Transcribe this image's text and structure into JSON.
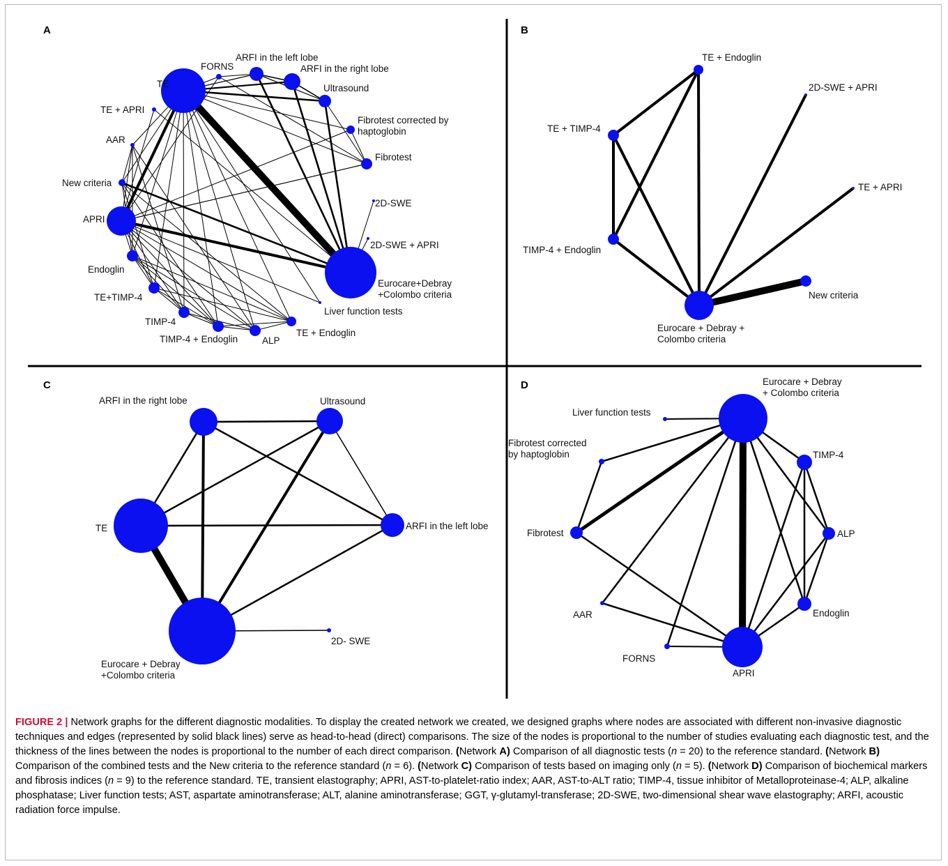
{
  "panels": [
    {
      "letter": "A",
      "nodes": [
        {
          "id": "TE",
          "label": "TE"
        },
        {
          "id": "FORNS",
          "label": "FORNS"
        },
        {
          "id": "ARFI-L",
          "label": "ARFI in the left lobe"
        },
        {
          "id": "ARFI-R",
          "label": "ARFI in the right lobe"
        },
        {
          "id": "US",
          "label": "Ultrasound"
        },
        {
          "id": "FTH",
          "label": "Fibrotest corrected by|haptoglobin"
        },
        {
          "id": "FT",
          "label": "Fibrotest"
        },
        {
          "id": "SWE",
          "label": "2D-SWE"
        },
        {
          "id": "SWEAPRI",
          "label": "2D-SWE + APRI"
        },
        {
          "id": "EDC",
          "label": "Eurocare+Debray|+Colombo criteria"
        },
        {
          "id": "LFT",
          "label": "Liver function tests"
        },
        {
          "id": "TEEND",
          "label": "TE + Endoglin"
        },
        {
          "id": "ALP",
          "label": "ALP"
        },
        {
          "id": "TIMPEND",
          "label": "TIMP-4 + Endoglin"
        },
        {
          "id": "TIMP",
          "label": "TIMP-4"
        },
        {
          "id": "TETIMP",
          "label": "TE+TIMP-4"
        },
        {
          "id": "END",
          "label": "Endoglin"
        },
        {
          "id": "APRI",
          "label": "APRI"
        },
        {
          "id": "NEW",
          "label": "New criteria"
        },
        {
          "id": "AAR",
          "label": "AAR"
        },
        {
          "id": "TEAPRI",
          "label": "TE + APRI"
        }
      ],
      "edges": [
        {
          "a": "TE",
          "b": "EDC",
          "w": 10
        },
        {
          "a": "TE",
          "b": "APRI",
          "w": 4
        },
        {
          "a": "APRI",
          "b": "EDC",
          "w": 4
        },
        {
          "a": "ARFI-R",
          "b": "EDC",
          "w": 2.6
        },
        {
          "a": "ARFI-L",
          "b": "EDC",
          "w": 2.6
        },
        {
          "a": "US",
          "b": "EDC",
          "w": 2.6
        },
        {
          "a": "TE",
          "b": "US",
          "w": 2.6
        },
        {
          "a": "TE",
          "b": "ARFI-R",
          "w": 2.2
        },
        {
          "a": "NEW",
          "b": "EDC",
          "w": 2.6
        },
        {
          "a": "TE",
          "b": "FORNS",
          "w": 1
        },
        {
          "a": "TE",
          "b": "ARFI-L",
          "w": 1.2
        },
        {
          "a": "TE",
          "b": "FTH",
          "w": 1
        },
        {
          "a": "TE",
          "b": "FT",
          "w": 1
        },
        {
          "a": "TE",
          "b": "TIMP",
          "w": 1
        },
        {
          "a": "TE",
          "b": "ALP",
          "w": 1
        },
        {
          "a": "TE",
          "b": "LFT",
          "w": 1
        },
        {
          "a": "TE",
          "b": "END",
          "w": 1
        },
        {
          "a": "TE",
          "b": "AAR",
          "w": 1
        },
        {
          "a": "TE",
          "b": "TETIMP",
          "w": 1
        },
        {
          "a": "TE",
          "b": "TIMPEND",
          "w": 1
        },
        {
          "a": "TE",
          "b": "TEEND",
          "w": 1
        },
        {
          "a": "TE",
          "b": "NEW",
          "w": 1
        },
        {
          "a": "ARFI-L",
          "b": "ARFI-R",
          "w": 1.6
        },
        {
          "a": "ARFI-L",
          "b": "US",
          "w": 1.2
        },
        {
          "a": "ARFI-R",
          "b": "US",
          "w": 1.6
        },
        {
          "a": "FORNS",
          "b": "APRI",
          "w": 1
        },
        {
          "a": "FORNS",
          "b": "FT",
          "w": 1
        },
        {
          "a": "FT",
          "b": "APRI",
          "w": 1
        },
        {
          "a": "FT",
          "b": "FTH",
          "w": 1
        },
        {
          "a": "FTH",
          "b": "APRI",
          "w": 1
        },
        {
          "a": "SWE",
          "b": "EDC",
          "w": 1
        },
        {
          "a": "SWEAPRI",
          "b": "EDC",
          "w": 1
        },
        {
          "a": "APRI",
          "b": "TIMP",
          "w": 1
        },
        {
          "a": "APRI",
          "b": "ALP",
          "w": 1
        },
        {
          "a": "APRI",
          "b": "END",
          "w": 1
        },
        {
          "a": "APRI",
          "b": "TETIMP",
          "w": 1
        },
        {
          "a": "APRI",
          "b": "TIMPEND",
          "w": 1
        },
        {
          "a": "APRI",
          "b": "TEEND",
          "w": 1
        },
        {
          "a": "APRI",
          "b": "AAR",
          "w": 1
        },
        {
          "a": "APRI",
          "b": "LFT",
          "w": 1
        },
        {
          "a": "APRI",
          "b": "FT",
          "w": 1
        },
        {
          "a": "AAR",
          "b": "TIMP",
          "w": 1
        },
        {
          "a": "AAR",
          "b": "ALP",
          "w": 1
        },
        {
          "a": "AAR",
          "b": "END",
          "w": 1
        },
        {
          "a": "AAR",
          "b": "NEW",
          "w": 1
        },
        {
          "a": "NEW",
          "b": "TETIMP",
          "w": 1
        },
        {
          "a": "NEW",
          "b": "TIMPEND",
          "w": 1
        },
        {
          "a": "NEW",
          "b": "TEEND",
          "w": 1
        },
        {
          "a": "NEW",
          "b": "END",
          "w": 1
        },
        {
          "a": "END",
          "b": "TIMP",
          "w": 1
        },
        {
          "a": "END",
          "b": "ALP",
          "w": 1
        },
        {
          "a": "END",
          "b": "TETIMP",
          "w": 1
        },
        {
          "a": "END",
          "b": "TIMPEND",
          "w": 1
        },
        {
          "a": "END",
          "b": "TEEND",
          "w": 1
        },
        {
          "a": "TETIMP",
          "b": "TIMPEND",
          "w": 1
        },
        {
          "a": "TETIMP",
          "b": "TEEND",
          "w": 1
        },
        {
          "a": "TETIMP",
          "b": "TIMP",
          "w": 1
        },
        {
          "a": "TIMP",
          "b": "TIMPEND",
          "w": 1
        },
        {
          "a": "TIMP",
          "b": "ALP",
          "w": 1
        },
        {
          "a": "TIMPEND",
          "b": "TEEND",
          "w": 1
        },
        {
          "a": "TIMPEND",
          "b": "ALP",
          "w": 1
        },
        {
          "a": "ALP",
          "b": "TEEND",
          "w": 1
        },
        {
          "a": "TEAPRI",
          "b": "APRI",
          "w": 1
        },
        {
          "a": "TEAPRI",
          "b": "EDC",
          "w": 1
        },
        {
          "a": "FT",
          "b": "US",
          "w": 1
        },
        {
          "a": "FORNS",
          "b": "ARFI-L",
          "w": 1
        }
      ]
    },
    {
      "letter": "B",
      "nodes": [
        {
          "id": "TEEND",
          "label": "TE + Endoglin"
        },
        {
          "id": "SWEAPRI",
          "label": "2D-SWE + APRI"
        },
        {
          "id": "TETIMP",
          "label": "TE + TIMP-4"
        },
        {
          "id": "TEAPRI",
          "label": "TE + APRI"
        },
        {
          "id": "TIMPEND",
          "label": "TIMP-4 + Endoglin"
        },
        {
          "id": "NEW",
          "label": "New criteria"
        },
        {
          "id": "EDC",
          "label": "Eurocare + Debray +|Colombo criteria"
        }
      ],
      "edges": [
        {
          "a": "NEW",
          "b": "EDC",
          "w": 10
        },
        {
          "a": "TEEND",
          "b": "EDC",
          "w": 4
        },
        {
          "a": "SWEAPRI",
          "b": "EDC",
          "w": 4
        },
        {
          "a": "TEAPRI",
          "b": "EDC",
          "w": 4
        },
        {
          "a": "TETIMP",
          "b": "EDC",
          "w": 4
        },
        {
          "a": "TIMPEND",
          "b": "EDC",
          "w": 4
        },
        {
          "a": "TETIMP",
          "b": "TEEND",
          "w": 4
        },
        {
          "a": "TETIMP",
          "b": "TIMPEND",
          "w": 4
        },
        {
          "a": "TIMPEND",
          "b": "TEEND",
          "w": 4
        }
      ]
    },
    {
      "letter": "C",
      "nodes": [
        {
          "id": "ARFI-R",
          "label": "ARFI in the right lobe"
        },
        {
          "id": "US",
          "label": "Ultrasound"
        },
        {
          "id": "TE",
          "label": "TE"
        },
        {
          "id": "ARFI-L",
          "label": "ARFI in the left lobe"
        },
        {
          "id": "EDC",
          "label": "Eurocare + Debray|+Colombo criteria"
        },
        {
          "id": "SWE",
          "label": "2D- SWE"
        }
      ],
      "edges": [
        {
          "a": "TE",
          "b": "EDC",
          "w": 10
        },
        {
          "a": "US",
          "b": "EDC",
          "w": 4
        },
        {
          "a": "ARFI-R",
          "b": "EDC",
          "w": 4
        },
        {
          "a": "TE",
          "b": "ARFI-R",
          "w": 2.5
        },
        {
          "a": "TE",
          "b": "US",
          "w": 2.5
        },
        {
          "a": "TE",
          "b": "ARFI-L",
          "w": 2.5
        },
        {
          "a": "ARFI-R",
          "b": "US",
          "w": 2.5
        },
        {
          "a": "ARFI-R",
          "b": "ARFI-L",
          "w": 2.5
        },
        {
          "a": "US",
          "b": "ARFI-L",
          "w": 1.5
        },
        {
          "a": "ARFI-L",
          "b": "EDC",
          "w": 2.5
        },
        {
          "a": "SWE",
          "b": "EDC",
          "w": 1.5
        }
      ]
    },
    {
      "letter": "D",
      "nodes": [
        {
          "id": "EDC",
          "label": "Eurocare + Debray|+ Colombo criteria"
        },
        {
          "id": "LFT",
          "label": "Liver function tests"
        },
        {
          "id": "FTH",
          "label": "Fibrotest corrected|by haptoglobin"
        },
        {
          "id": "TIMP",
          "label": "TIMP-4"
        },
        {
          "id": "FT",
          "label": "Fibrotest"
        },
        {
          "id": "ALP",
          "label": "ALP"
        },
        {
          "id": "AAR",
          "label": "AAR"
        },
        {
          "id": "END",
          "label": "Endoglin"
        },
        {
          "id": "FORNS",
          "label": "FORNS"
        },
        {
          "id": "APRI",
          "label": "APRI"
        }
      ],
      "edges": [
        {
          "a": "EDC",
          "b": "APRI",
          "w": 10
        },
        {
          "a": "EDC",
          "b": "FT",
          "w": 5
        },
        {
          "a": "EDC",
          "b": "LFT",
          "w": 2
        },
        {
          "a": "EDC",
          "b": "TIMP",
          "w": 2.5
        },
        {
          "a": "EDC",
          "b": "ALP",
          "w": 2.5
        },
        {
          "a": "EDC",
          "b": "END",
          "w": 2.5
        },
        {
          "a": "EDC",
          "b": "AAR",
          "w": 2.5
        },
        {
          "a": "EDC",
          "b": "FORNS",
          "w": 2.5
        },
        {
          "a": "EDC",
          "b": "FTH",
          "w": 2.5
        },
        {
          "a": "FTH",
          "b": "FT",
          "w": 2.5
        },
        {
          "a": "FT",
          "b": "APRI",
          "w": 2.5
        },
        {
          "a": "AAR",
          "b": "APRI",
          "w": 2.5
        },
        {
          "a": "TIMP",
          "b": "APRI",
          "w": 2.5
        },
        {
          "a": "ALP",
          "b": "APRI",
          "w": 2.5
        },
        {
          "a": "END",
          "b": "APRI",
          "w": 2.5
        },
        {
          "a": "TIMP",
          "b": "ALP",
          "w": 2.5
        },
        {
          "a": "TIMP",
          "b": "END",
          "w": 2.5
        },
        {
          "a": "ALP",
          "b": "END",
          "w": 2.5
        },
        {
          "a": "FORNS",
          "b": "APRI",
          "w": 2
        }
      ]
    }
  ],
  "caption": {
    "figure_label": "FIGURE 2 |",
    "segments": [
      {
        "t": " Network graphs for the different diagnostic modalities. To display the created network we created, we designed graphs where nodes are associated with different non-invasive diagnostic techniques and edges (represented by solid black lines) serve as head-to-head (direct) comparisons. The size of the nodes is proportional to the number of studies evaluating each diagnostic test, and the thickness of the lines between the nodes is proportional to the number of each direct comparison. "
      },
      {
        "t": "(",
        "b": true
      },
      {
        "t": "Network "
      },
      {
        "t": "A)",
        "b": true
      },
      {
        "t": " Comparison of all diagnostic tests ("
      },
      {
        "t": "n",
        "i": true
      },
      {
        "t": " = 20) to the reference standard. "
      },
      {
        "t": "(",
        "b": true
      },
      {
        "t": "Network "
      },
      {
        "t": "B)",
        "b": true
      },
      {
        "t": " Comparison of the combined tests and the New criteria to the reference standard ("
      },
      {
        "t": "n",
        "i": true
      },
      {
        "t": " = 6). "
      },
      {
        "t": "(",
        "b": true
      },
      {
        "t": "Network "
      },
      {
        "t": "C)",
        "b": true
      },
      {
        "t": " Comparison of tests based on imaging only ("
      },
      {
        "t": "n",
        "i": true
      },
      {
        "t": " = 5). "
      },
      {
        "t": "(",
        "b": true
      },
      {
        "t": "Network "
      },
      {
        "t": "D)",
        "b": true
      },
      {
        "t": " Comparison of biochemical markers and fibrosis indices ("
      },
      {
        "t": "n",
        "i": true
      },
      {
        "t": " = 9) to the reference standard. TE, transient elastography; APRI, AST-to-platelet-ratio index; AAR, AST-to-ALT ratio; TIMP-4, tissue inhibitor of Metalloproteinase-4; ALP, alkaline phosphatase; Liver function tests; AST, aspartate aminotransferase; ALT, alanine aminotransferase; GGT, γ-glutamyl-transferase; 2D-SWE, two-dimensional shear wave elastography; ARFI, acoustic radiation force impulse."
      }
    ]
  },
  "colors": {
    "node": "#0a10f0",
    "edge": "#000000",
    "divider": "#000000",
    "border": "#b9b9b9"
  }
}
